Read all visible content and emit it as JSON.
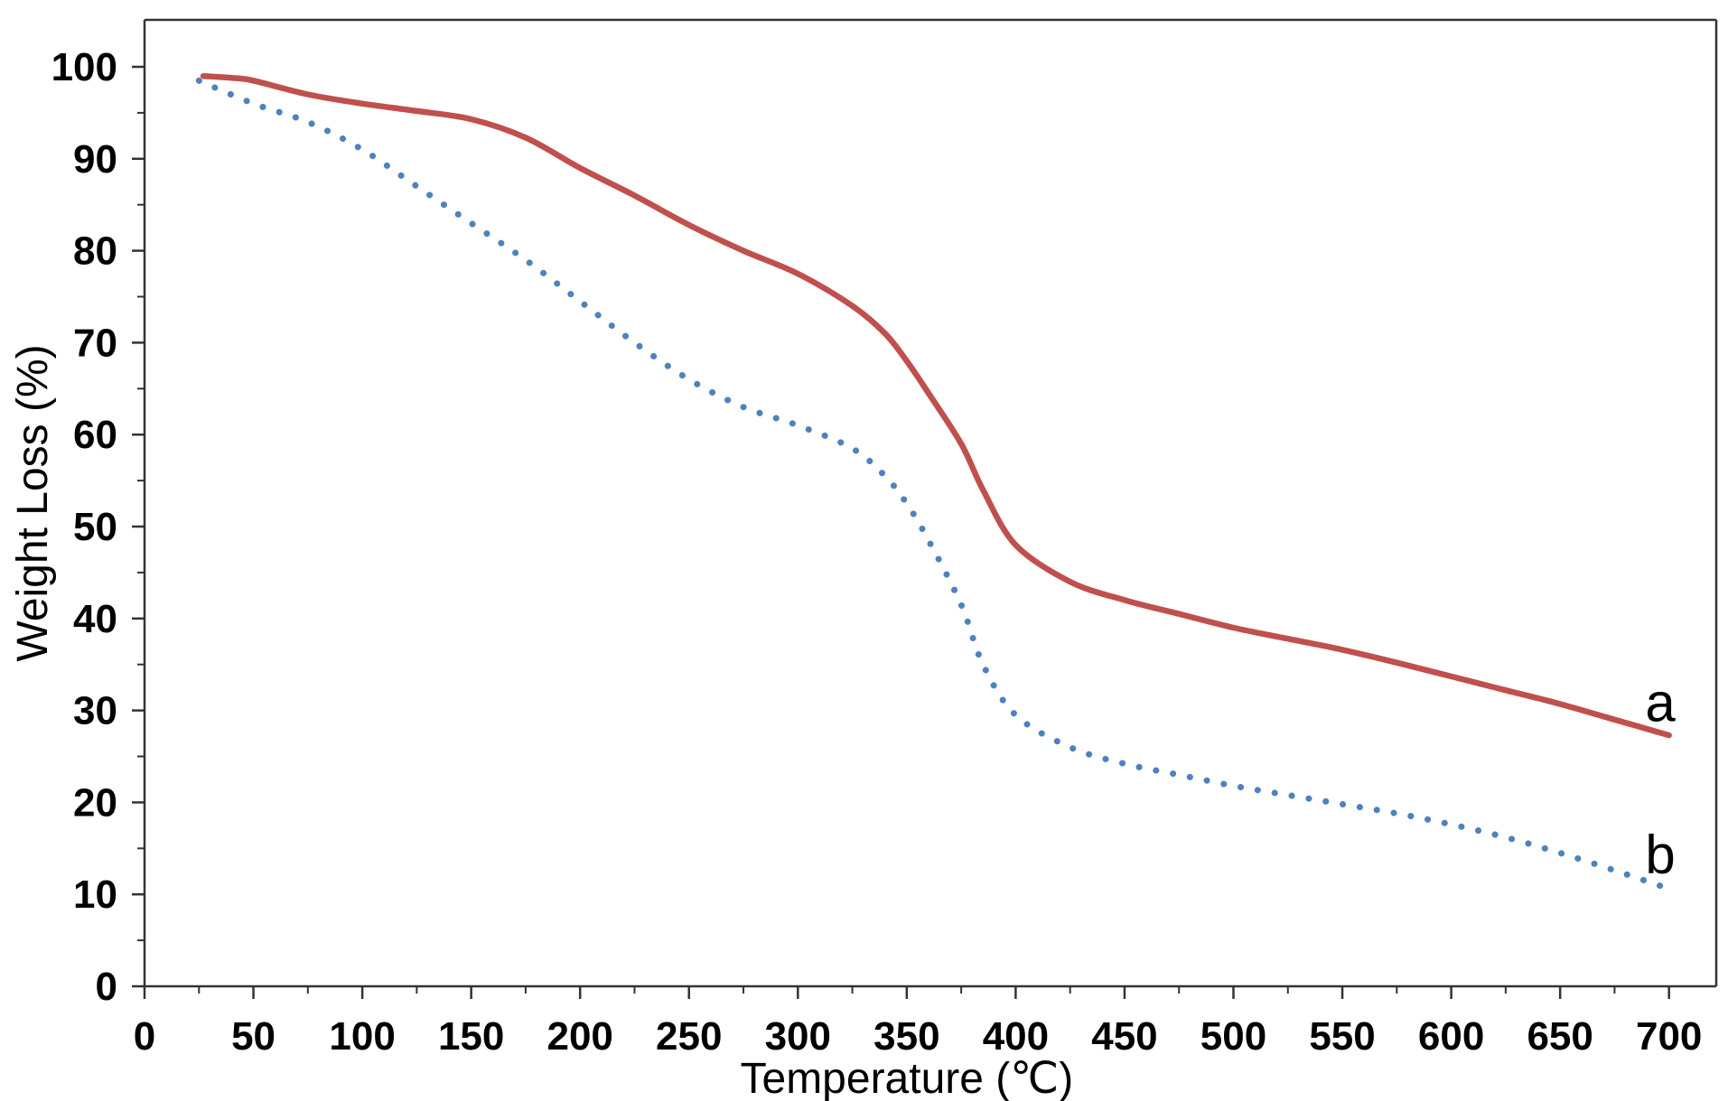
{
  "chart_data": {
    "type": "line",
    "title": "",
    "xlabel": "Temperature (℃)",
    "ylabel": "Weight Loss (%)",
    "xlim": [
      0,
      720
    ],
    "ylim": [
      0,
      100
    ],
    "xticks": [
      0,
      50,
      100,
      150,
      200,
      250,
      300,
      350,
      400,
      450,
      500,
      550,
      600,
      650,
      700
    ],
    "yticks": [
      0,
      10,
      20,
      30,
      40,
      50,
      60,
      70,
      80,
      90,
      100
    ],
    "grid": false,
    "legend": "none",
    "series": [
      {
        "name": "a",
        "color": "#c0504d",
        "style": "solid",
        "x": [
          27,
          40,
          50,
          75,
          100,
          125,
          150,
          175,
          200,
          225,
          250,
          275,
          300,
          325,
          340,
          350,
          360,
          375,
          385,
          400,
          425,
          450,
          475,
          500,
          525,
          550,
          575,
          600,
          625,
          650,
          675,
          700
        ],
        "y": [
          99,
          98.8,
          98.5,
          97,
          96,
          95.2,
          94.3,
          92.3,
          89,
          86,
          82.8,
          80,
          77.5,
          74,
          71,
          68,
          64.5,
          59,
          54,
          48,
          44,
          42,
          40.5,
          39,
          37.8,
          36.6,
          35.2,
          33.7,
          32.2,
          30.7,
          29,
          27.3
        ]
      },
      {
        "name": "b",
        "color": "#4f81bd",
        "style": "dotted",
        "x": [
          25,
          50,
          75,
          100,
          125,
          150,
          175,
          200,
          225,
          250,
          275,
          300,
          325,
          340,
          350,
          360,
          375,
          385,
          400,
          425,
          450,
          475,
          500,
          525,
          550,
          575,
          600,
          625,
          650,
          675,
          700
        ],
        "y": [
          98.5,
          96,
          94,
          91,
          87,
          83,
          79,
          74.5,
          70,
          66,
          63,
          61,
          58.5,
          55.5,
          52.5,
          48.5,
          41.5,
          35,
          29.5,
          26,
          24.2,
          23,
          21.8,
          20.8,
          19.8,
          18.8,
          17.6,
          16.2,
          14.5,
          12.6,
          10.6
        ]
      }
    ],
    "annotations": [
      {
        "text": "a",
        "x": 696,
        "y": 31
      },
      {
        "text": "b",
        "x": 696,
        "y": 14.5
      }
    ]
  }
}
